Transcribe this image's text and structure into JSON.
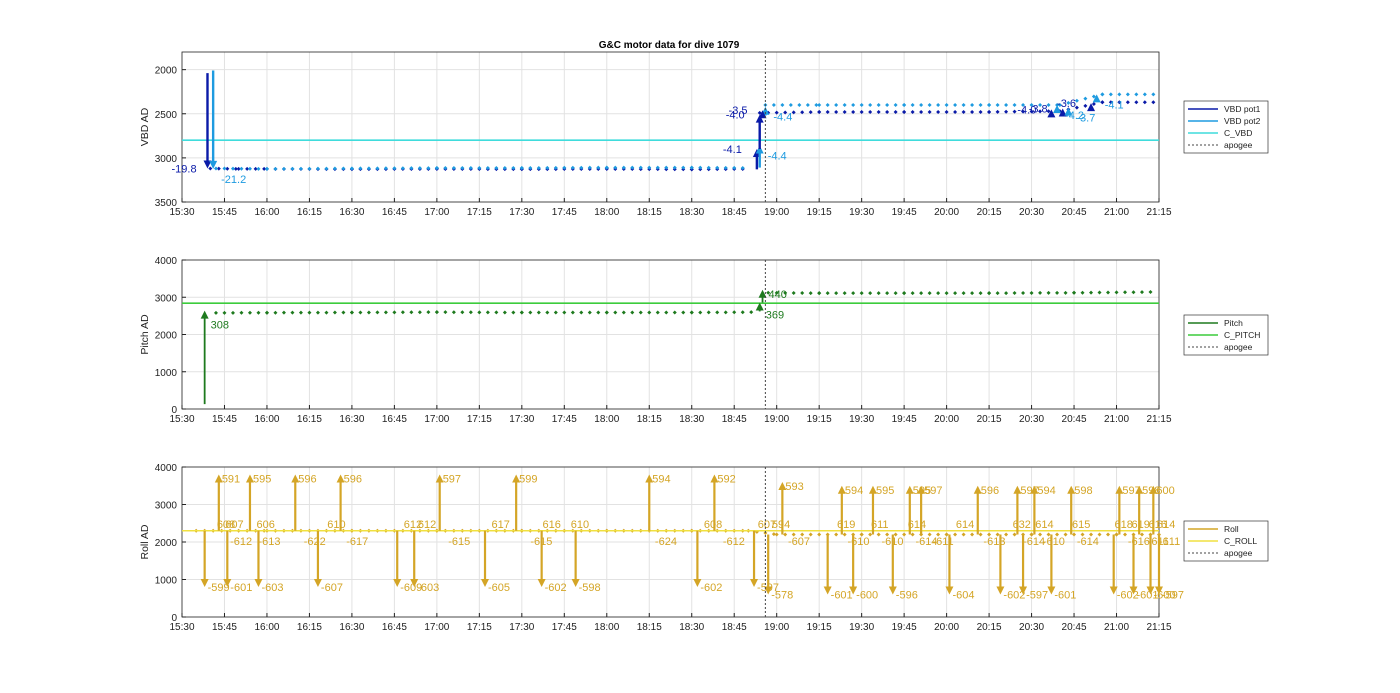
{
  "figure": {
    "title": "G&C motor data for dive 1079"
  },
  "colors": {
    "vbd_pot1": "#0a1aa8",
    "vbd_pot2": "#1e9be0",
    "c_vbd": "#3fdcdc",
    "pitch": "#1e7a1e",
    "c_pitch": "#3ccc3c",
    "roll": "#d4a526",
    "c_roll": "#f0e040",
    "apogee": "#444444",
    "grid": "#e2e2e2"
  },
  "chart_data": [
    {
      "type": "scatter",
      "x_axis": "time",
      "ylabel": "VBD AD",
      "ylim": [
        3500,
        1800
      ],
      "y_reversed": true,
      "yticks": [
        2000,
        2500,
        3000,
        3500
      ],
      "xlim": [
        "15:30",
        "21:15"
      ],
      "xticks": [
        "15:30",
        "15:45",
        "16:00",
        "16:15",
        "16:30",
        "16:45",
        "17:00",
        "17:15",
        "17:30",
        "17:45",
        "18:00",
        "18:15",
        "18:30",
        "18:45",
        "19:00",
        "19:15",
        "19:30",
        "19:45",
        "20:00",
        "20:15",
        "20:30",
        "20:45",
        "21:00",
        "21:15"
      ],
      "grid": true,
      "legend": [
        "VBD pot1",
        "VBD pot2",
        "C_VBD",
        "apogee"
      ],
      "legend_placement": "outside-right",
      "series": [
        {
          "name": "VBD pot1",
          "points": [
            [
              "15:40",
              3120
            ],
            [
              "15:50",
              3125
            ],
            [
              "16:00",
              3125
            ],
            [
              "16:30",
              3128
            ],
            [
              "17:00",
              3125
            ],
            [
              "17:30",
              3128
            ],
            [
              "18:00",
              3125
            ],
            [
              "18:30",
              3130
            ],
            [
              "18:50",
              3125
            ],
            [
              "18:54",
              2490
            ],
            [
              "19:15",
              2480
            ],
            [
              "19:45",
              2480
            ],
            [
              "20:15",
              2480
            ],
            [
              "20:40",
              2470
            ],
            [
              "20:55",
              2370
            ],
            [
              "21:13",
              2370
            ]
          ]
        },
        {
          "name": "VBD pot2",
          "points": [
            [
              "15:42",
              3120
            ],
            [
              "16:00",
              3125
            ],
            [
              "16:30",
              3120
            ],
            [
              "17:00",
              3115
            ],
            [
              "17:30",
              3115
            ],
            [
              "18:00",
              3110
            ],
            [
              "18:30",
              3110
            ],
            [
              "18:50",
              3115
            ],
            [
              "18:56",
              2400
            ],
            [
              "19:15",
              2400
            ],
            [
              "19:45",
              2400
            ],
            [
              "20:15",
              2400
            ],
            [
              "20:40",
              2400
            ],
            [
              "20:55",
              2280
            ],
            [
              "21:13",
              2280
            ]
          ]
        },
        {
          "name": "C_VBD",
          "points": [
            [
              "15:30",
              2800
            ],
            [
              "21:15",
              2800
            ]
          ]
        }
      ],
      "vbd_moves": [
        {
          "series": "VBD pot1",
          "time": "15:39",
          "from": 2040,
          "to": 3120,
          "label": "-19.8"
        },
        {
          "series": "VBD pot2",
          "time": "15:41",
          "from": 2010,
          "to": 3125,
          "label": "-21.2"
        },
        {
          "series": "VBD pot1",
          "time": "18:53",
          "from": 3130,
          "to": 2900,
          "label": "-4.1"
        },
        {
          "series": "VBD pot2",
          "time": "18:54",
          "from": 3110,
          "to": 2860,
          "label": "-4.4"
        },
        {
          "series": "VBD pot1",
          "time": "18:54",
          "from": 2900,
          "to": 2510,
          "label": "-4.0"
        },
        {
          "series": "VBD pot2",
          "time": "18:56",
          "from": 2520,
          "to": 2420,
          "label": "-4.4"
        },
        {
          "series": "VBD pot1",
          "time": "18:55",
          "from": 2520,
          "to": 2460,
          "label": "-3.5"
        },
        {
          "series": "VBD pot1",
          "time": "20:37",
          "from": 2500,
          "to": 2450,
          "label": "-4.0"
        },
        {
          "series": "VBD pot2",
          "time": "20:39",
          "from": 2450,
          "to": 2400,
          "label": "-4.2"
        },
        {
          "series": "VBD pot1",
          "time": "20:41",
          "from": 2470,
          "to": 2440,
          "label": "-3.8"
        },
        {
          "series": "VBD pot2",
          "time": "20:43",
          "from": 2450,
          "to": 2430,
          "label": "-3.7"
        },
        {
          "series": "VBD pot1",
          "time": "20:51",
          "from": 2420,
          "to": 2380,
          "label": "-3.6"
        },
        {
          "series": "VBD pot2",
          "time": "20:53",
          "from": 2330,
          "to": 2280,
          "label": "-4.1"
        }
      ],
      "apogee": "18:56"
    },
    {
      "type": "scatter",
      "x_axis": "time",
      "ylabel": "Pitch AD",
      "ylim": [
        0,
        4000
      ],
      "yticks": [
        0,
        1000,
        2000,
        3000,
        4000
      ],
      "xlim": [
        "15:30",
        "21:15"
      ],
      "xticks": [
        "15:30",
        "15:45",
        "16:00",
        "16:15",
        "16:30",
        "16:45",
        "17:00",
        "17:15",
        "17:30",
        "17:45",
        "18:00",
        "18:15",
        "18:30",
        "18:45",
        "19:00",
        "19:15",
        "19:30",
        "19:45",
        "20:00",
        "20:15",
        "20:30",
        "20:45",
        "21:00",
        "21:15"
      ],
      "grid": true,
      "legend": [
        "Pitch",
        "C_PITCH",
        "apogee"
      ],
      "legend_placement": "outside-right",
      "series": [
        {
          "name": "Pitch",
          "points": [
            [
              "15:42",
              2580
            ],
            [
              "16:00",
              2585
            ],
            [
              "16:30",
              2590
            ],
            [
              "17:00",
              2600
            ],
            [
              "17:30",
              2590
            ],
            [
              "18:00",
              2590
            ],
            [
              "18:30",
              2590
            ],
            [
              "18:52",
              2600
            ],
            [
              "18:57",
              3120
            ],
            [
              "19:15",
              3110
            ],
            [
              "19:45",
              3110
            ],
            [
              "20:15",
              3110
            ],
            [
              "20:45",
              3120
            ],
            [
              "21:13",
              3140
            ]
          ]
        },
        {
          "name": "C_PITCH",
          "points": [
            [
              "15:30",
              2840
            ],
            [
              "21:15",
              2840
            ]
          ]
        }
      ],
      "pitch_moves": [
        {
          "time": "15:38",
          "from": 130,
          "to": 2640,
          "label": "308"
        },
        {
          "time": "18:54",
          "from": 2620,
          "to": 2860,
          "label": "369"
        },
        {
          "time": "18:55",
          "from": 2860,
          "to": 3200,
          "label": "440"
        }
      ],
      "apogee": "18:56"
    },
    {
      "type": "scatter",
      "x_axis": "time",
      "ylabel": "Roll AD",
      "ylim": [
        0,
        4000
      ],
      "yticks": [
        0,
        1000,
        2000,
        3000,
        4000
      ],
      "xlim": [
        "15:30",
        "21:15"
      ],
      "xticks": [
        "15:30",
        "15:45",
        "16:00",
        "16:15",
        "16:30",
        "16:45",
        "17:00",
        "17:15",
        "17:30",
        "17:45",
        "18:00",
        "18:15",
        "18:30",
        "18:45",
        "19:00",
        "19:15",
        "19:30",
        "19:45",
        "20:00",
        "20:15",
        "20:30",
        "20:45",
        "21:00",
        "21:15"
      ],
      "grid": true,
      "legend": [
        "Roll",
        "C_ROLL",
        "apogee"
      ],
      "legend_placement": "outside-right",
      "series": [
        {
          "name": "Roll",
          "points": [
            [
              "15:35",
              2300
            ],
            [
              "16:00",
              2300
            ],
            [
              "16:30",
              2300
            ],
            [
              "17:00",
              2300
            ],
            [
              "17:30",
              2300
            ],
            [
              "18:00",
              2300
            ],
            [
              "18:30",
              2300
            ],
            [
              "18:50",
              2300
            ],
            [
              "19:00",
              2200
            ],
            [
              "19:30",
              2200
            ],
            [
              "20:00",
              2200
            ],
            [
              "20:30",
              2200
            ],
            [
              "21:00",
              2200
            ],
            [
              "21:15",
              2200
            ]
          ]
        },
        {
          "name": "C_ROLL",
          "points": [
            [
              "15:30",
              2300
            ],
            [
              "21:15",
              2300
            ]
          ]
        }
      ],
      "roll_moves": [
        {
          "time": "15:43",
          "from": 2300,
          "to": 3800,
          "label": "591"
        },
        {
          "time": "15:54",
          "from": 2300,
          "to": 3800,
          "label": "595"
        },
        {
          "time": "16:10",
          "from": 2300,
          "to": 3800,
          "label": "596"
        },
        {
          "time": "16:26",
          "from": 2300,
          "to": 3800,
          "label": "596"
        },
        {
          "time": "17:01",
          "from": 2300,
          "to": 3800,
          "label": "597"
        },
        {
          "time": "17:28",
          "from": 2300,
          "to": 3800,
          "label": "599"
        },
        {
          "time": "18:15",
          "from": 2300,
          "to": 3800,
          "label": "594"
        },
        {
          "time": "18:38",
          "from": 2300,
          "to": 3800,
          "label": "592"
        },
        {
          "time": "19:02",
          "from": 2200,
          "to": 3600,
          "label": "593"
        },
        {
          "time": "19:23",
          "from": 2200,
          "to": 3500,
          "label": "594"
        },
        {
          "time": "19:34",
          "from": 2200,
          "to": 3500,
          "label": "595"
        },
        {
          "time": "19:47",
          "from": 2200,
          "to": 3500,
          "label": "595"
        },
        {
          "time": "19:51",
          "from": 2200,
          "to": 3500,
          "label": "597"
        },
        {
          "time": "20:11",
          "from": 2200,
          "to": 3500,
          "label": "596"
        },
        {
          "time": "20:25",
          "from": 2200,
          "to": 3500,
          "label": "597"
        },
        {
          "time": "20:31",
          "from": 2200,
          "to": 3500,
          "label": "594"
        },
        {
          "time": "20:44",
          "from": 2200,
          "to": 3500,
          "label": "598"
        },
        {
          "time": "21:01",
          "from": 2200,
          "to": 3500,
          "label": "597"
        },
        {
          "time": "21:08",
          "from": 2200,
          "to": 3500,
          "label": "598"
        },
        {
          "time": "21:13",
          "from": 2200,
          "to": 3500,
          "label": "600"
        },
        {
          "time": "15:38",
          "from": 2300,
          "to": 800,
          "label": "-599"
        },
        {
          "time": "15:46",
          "from": 2300,
          "to": 800,
          "label": "-601"
        },
        {
          "time": "15:57",
          "from": 2300,
          "to": 800,
          "label": "-603"
        },
        {
          "time": "16:18",
          "from": 2300,
          "to": 800,
          "label": "-607"
        },
        {
          "time": "16:46",
          "from": 2300,
          "to": 800,
          "label": "-609"
        },
        {
          "time": "16:52",
          "from": 2300,
          "to": 800,
          "label": "-603"
        },
        {
          "time": "17:17",
          "from": 2300,
          "to": 800,
          "label": "-605"
        },
        {
          "time": "17:37",
          "from": 2300,
          "to": 800,
          "label": "-602"
        },
        {
          "time": "17:49",
          "from": 2300,
          "to": 800,
          "label": "-598"
        },
        {
          "time": "18:32",
          "from": 2300,
          "to": 800,
          "label": "-602"
        },
        {
          "time": "18:52",
          "from": 2300,
          "to": 800,
          "label": "-597"
        },
        {
          "time": "18:57",
          "from": 2200,
          "to": 600,
          "label": "-578"
        },
        {
          "time": "19:18",
          "from": 2200,
          "to": 600,
          "label": "-601"
        },
        {
          "time": "19:27",
          "from": 2200,
          "to": 600,
          "label": "-600"
        },
        {
          "time": "19:41",
          "from": 2200,
          "to": 600,
          "label": "-596"
        },
        {
          "time": "20:01",
          "from": 2200,
          "to": 600,
          "label": "-604"
        },
        {
          "time": "20:19",
          "from": 2200,
          "to": 600,
          "label": "-602"
        },
        {
          "time": "20:27",
          "from": 2200,
          "to": 600,
          "label": "-597"
        },
        {
          "time": "20:37",
          "from": 2200,
          "to": 600,
          "label": "-601"
        },
        {
          "time": "20:59",
          "from": 2200,
          "to": 600,
          "label": "-602"
        },
        {
          "time": "21:06",
          "from": 2200,
          "to": 600,
          "label": "-601"
        },
        {
          "time": "21:12",
          "from": 2200,
          "to": 600,
          "label": "-600"
        },
        {
          "time": "21:15",
          "from": 2200,
          "to": 600,
          "label": "-597"
        }
      ],
      "roll_inline_labels": [
        {
          "time": "15:43",
          "text": "608"
        },
        {
          "time": "15:46",
          "text": "607"
        },
        {
          "time": "15:57",
          "text": "606"
        },
        {
          "time": "16:22",
          "text": "610"
        },
        {
          "time": "16:49",
          "text": "612"
        },
        {
          "time": "16:54",
          "text": "612"
        },
        {
          "time": "17:20",
          "text": "617"
        },
        {
          "time": "17:38",
          "text": "616"
        },
        {
          "time": "17:48",
          "text": "610"
        },
        {
          "time": "18:35",
          "text": "608"
        },
        {
          "time": "18:54",
          "text": "607"
        },
        {
          "time": "18:59",
          "text": "594"
        },
        {
          "time": "19:22",
          "text": "619"
        },
        {
          "time": "19:34",
          "text": "611"
        },
        {
          "time": "19:47",
          "text": "614"
        },
        {
          "time": "20:04",
          "text": "614"
        },
        {
          "time": "20:24",
          "text": "632"
        },
        {
          "time": "20:32",
          "text": "614"
        },
        {
          "time": "20:45",
          "text": "615"
        },
        {
          "time": "21:00",
          "text": "618"
        },
        {
          "time": "21:06",
          "text": "619"
        },
        {
          "time": "21:12",
          "text": "616"
        },
        {
          "time": "21:15",
          "text": "614"
        },
        {
          "time": "15:47",
          "text": "-612"
        },
        {
          "time": "15:57",
          "text": "-613"
        },
        {
          "time": "16:13",
          "text": "-622"
        },
        {
          "time": "16:28",
          "text": "-617"
        },
        {
          "time": "17:04",
          "text": "-615"
        },
        {
          "time": "17:33",
          "text": "-615"
        },
        {
          "time": "18:17",
          "text": "-624"
        },
        {
          "time": "18:41",
          "text": "-612"
        },
        {
          "time": "19:04",
          "text": "-607"
        },
        {
          "time": "19:25",
          "text": "-610"
        },
        {
          "time": "19:37",
          "text": "-610"
        },
        {
          "time": "19:49",
          "text": "-614"
        },
        {
          "time": "19:55",
          "text": "-611"
        },
        {
          "time": "20:13",
          "text": "-613"
        },
        {
          "time": "20:27",
          "text": "-614"
        },
        {
          "time": "20:34",
          "text": "-610"
        },
        {
          "time": "20:46",
          "text": "-614"
        },
        {
          "time": "21:04",
          "text": "-616"
        },
        {
          "time": "21:11",
          "text": "-611"
        },
        {
          "time": "21:15",
          "text": "-611"
        }
      ],
      "apogee": "18:56"
    }
  ]
}
